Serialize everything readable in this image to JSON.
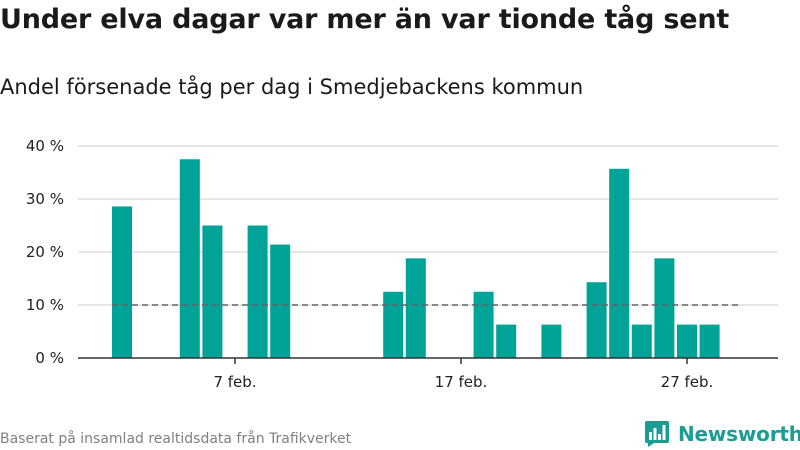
{
  "header": {
    "title": "Under elva dagar var mer än var tionde tåg sent",
    "subtitle": "Andel försenade tåg per dag i Smedjebackens kommun"
  },
  "footer": {
    "source": "Baserat på insamlad realtidsdata från Trafikverket",
    "brand": "Newsworthy"
  },
  "colors": {
    "bar": "#00a398",
    "reference_line": "#666666",
    "grid": "#dddddd",
    "brand": "#1a9e93"
  },
  "chart_data": {
    "type": "bar",
    "title": "Under elva dagar var mer än var tionde tåg sent",
    "subtitle": "Andel försenade tåg per dag i Smedjebackens kommun",
    "xlabel": "",
    "ylabel": "",
    "x": [
      "2024-02-02",
      "2024-02-03",
      "2024-02-04",
      "2024-02-05",
      "2024-02-06",
      "2024-02-07",
      "2024-02-08",
      "2024-02-09",
      "2024-02-10",
      "2024-02-11",
      "2024-02-12",
      "2024-02-13",
      "2024-02-14",
      "2024-02-15",
      "2024-02-16",
      "2024-02-17",
      "2024-02-18",
      "2024-02-19",
      "2024-02-20",
      "2024-02-21",
      "2024-02-22",
      "2024-02-23",
      "2024-02-24",
      "2024-02-25",
      "2024-02-26",
      "2024-02-27",
      "2024-02-28",
      "2024-02-29"
    ],
    "values": [
      28.6,
      0,
      0,
      37.5,
      25.0,
      0,
      25.0,
      21.4,
      0,
      0,
      0,
      0,
      12.5,
      18.8,
      0,
      0,
      12.5,
      6.3,
      0,
      6.3,
      0,
      14.3,
      35.7,
      6.3,
      18.8,
      6.3,
      6.3,
      0
    ],
    "reference_line": 10,
    "ylim": [
      0,
      40
    ],
    "yticks": [
      0,
      10,
      20,
      30,
      40
    ],
    "ytick_labels": [
      "0 %",
      "10 %",
      "20 %",
      "30 %",
      "40 %"
    ],
    "xticks": [
      "2024-02-07",
      "2024-02-17",
      "2024-02-27"
    ],
    "xtick_labels": [
      "7 feb.",
      "17 feb.",
      "27 feb."
    ],
    "grid": "horizontal",
    "legend": "none"
  }
}
